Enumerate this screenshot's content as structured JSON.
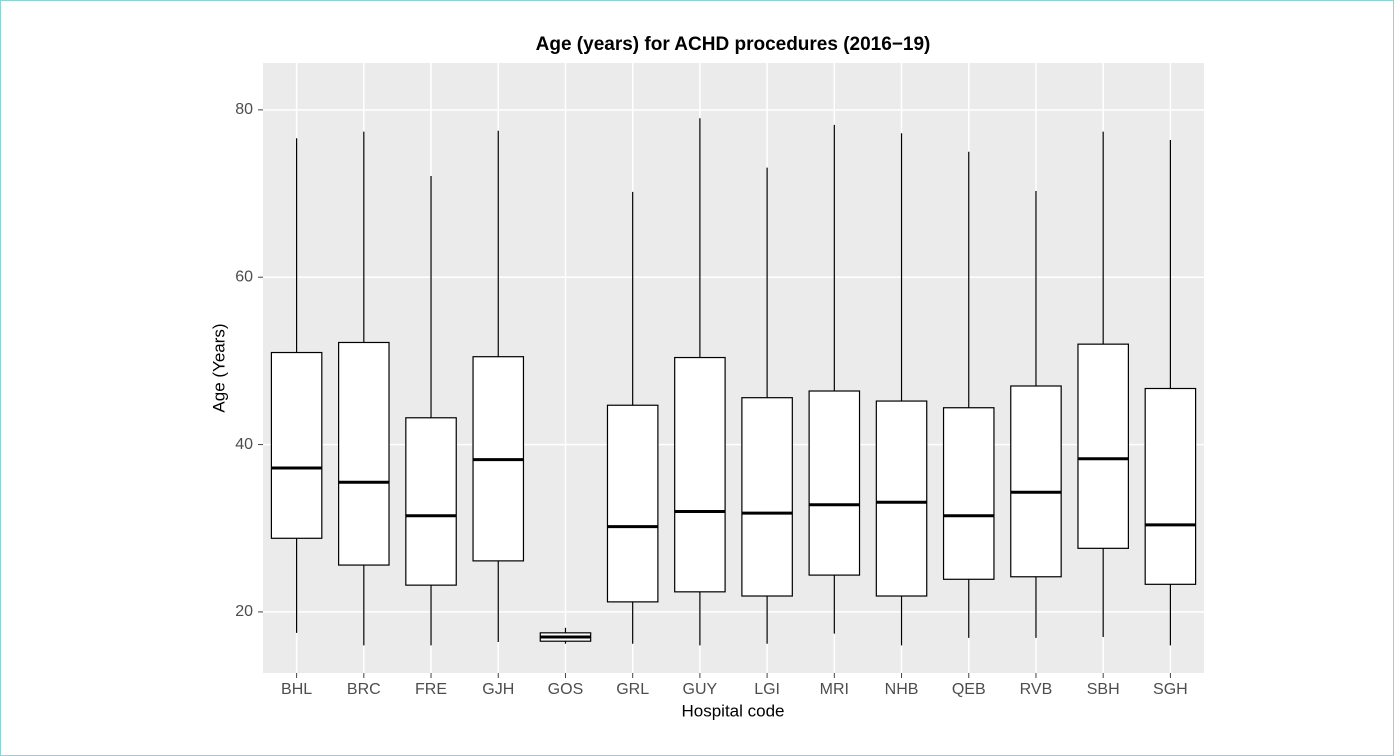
{
  "chart_data": {
    "type": "boxplot",
    "title": "Age (years) for ACHD procedures (2016−19)",
    "x_label": "Hospital code",
    "y_label": "Age (Years)",
    "categories": [
      "BHL",
      "BRC",
      "FRE",
      "GJH",
      "GOS",
      "GRL",
      "GUY",
      "LGI",
      "MRI",
      "NHB",
      "QEB",
      "RVB",
      "SBH",
      "SGH"
    ],
    "series": [
      {
        "name": "Age",
        "color": "#000000",
        "min": [
          17.5,
          16.0,
          16.0,
          16.4,
          16.2,
          16.2,
          16.0,
          16.2,
          17.4,
          16.0,
          16.9,
          16.9,
          17.0,
          16.0
        ],
        "q1": [
          28.8,
          25.6,
          23.2,
          26.1,
          16.5,
          21.2,
          22.4,
          21.9,
          24.4,
          21.9,
          23.9,
          24.2,
          27.6,
          23.3
        ],
        "median": [
          37.2,
          35.5,
          31.5,
          38.2,
          17.0,
          30.2,
          32.0,
          31.8,
          32.8,
          33.1,
          31.5,
          34.3,
          38.3,
          30.4
        ],
        "q3": [
          51.0,
          52.2,
          43.2,
          50.5,
          17.5,
          44.7,
          50.4,
          45.6,
          46.4,
          45.2,
          44.4,
          47.0,
          52.0,
          46.7
        ],
        "max": [
          76.6,
          77.4,
          72.1,
          77.5,
          18.1,
          70.2,
          79.0,
          73.1,
          78.2,
          77.2,
          75.0,
          70.3,
          77.4,
          76.4
        ]
      }
    ],
    "ylim": [
      12.7,
      85.6
    ],
    "yticks": [
      20,
      40,
      60,
      80
    ],
    "grid": true
  }
}
